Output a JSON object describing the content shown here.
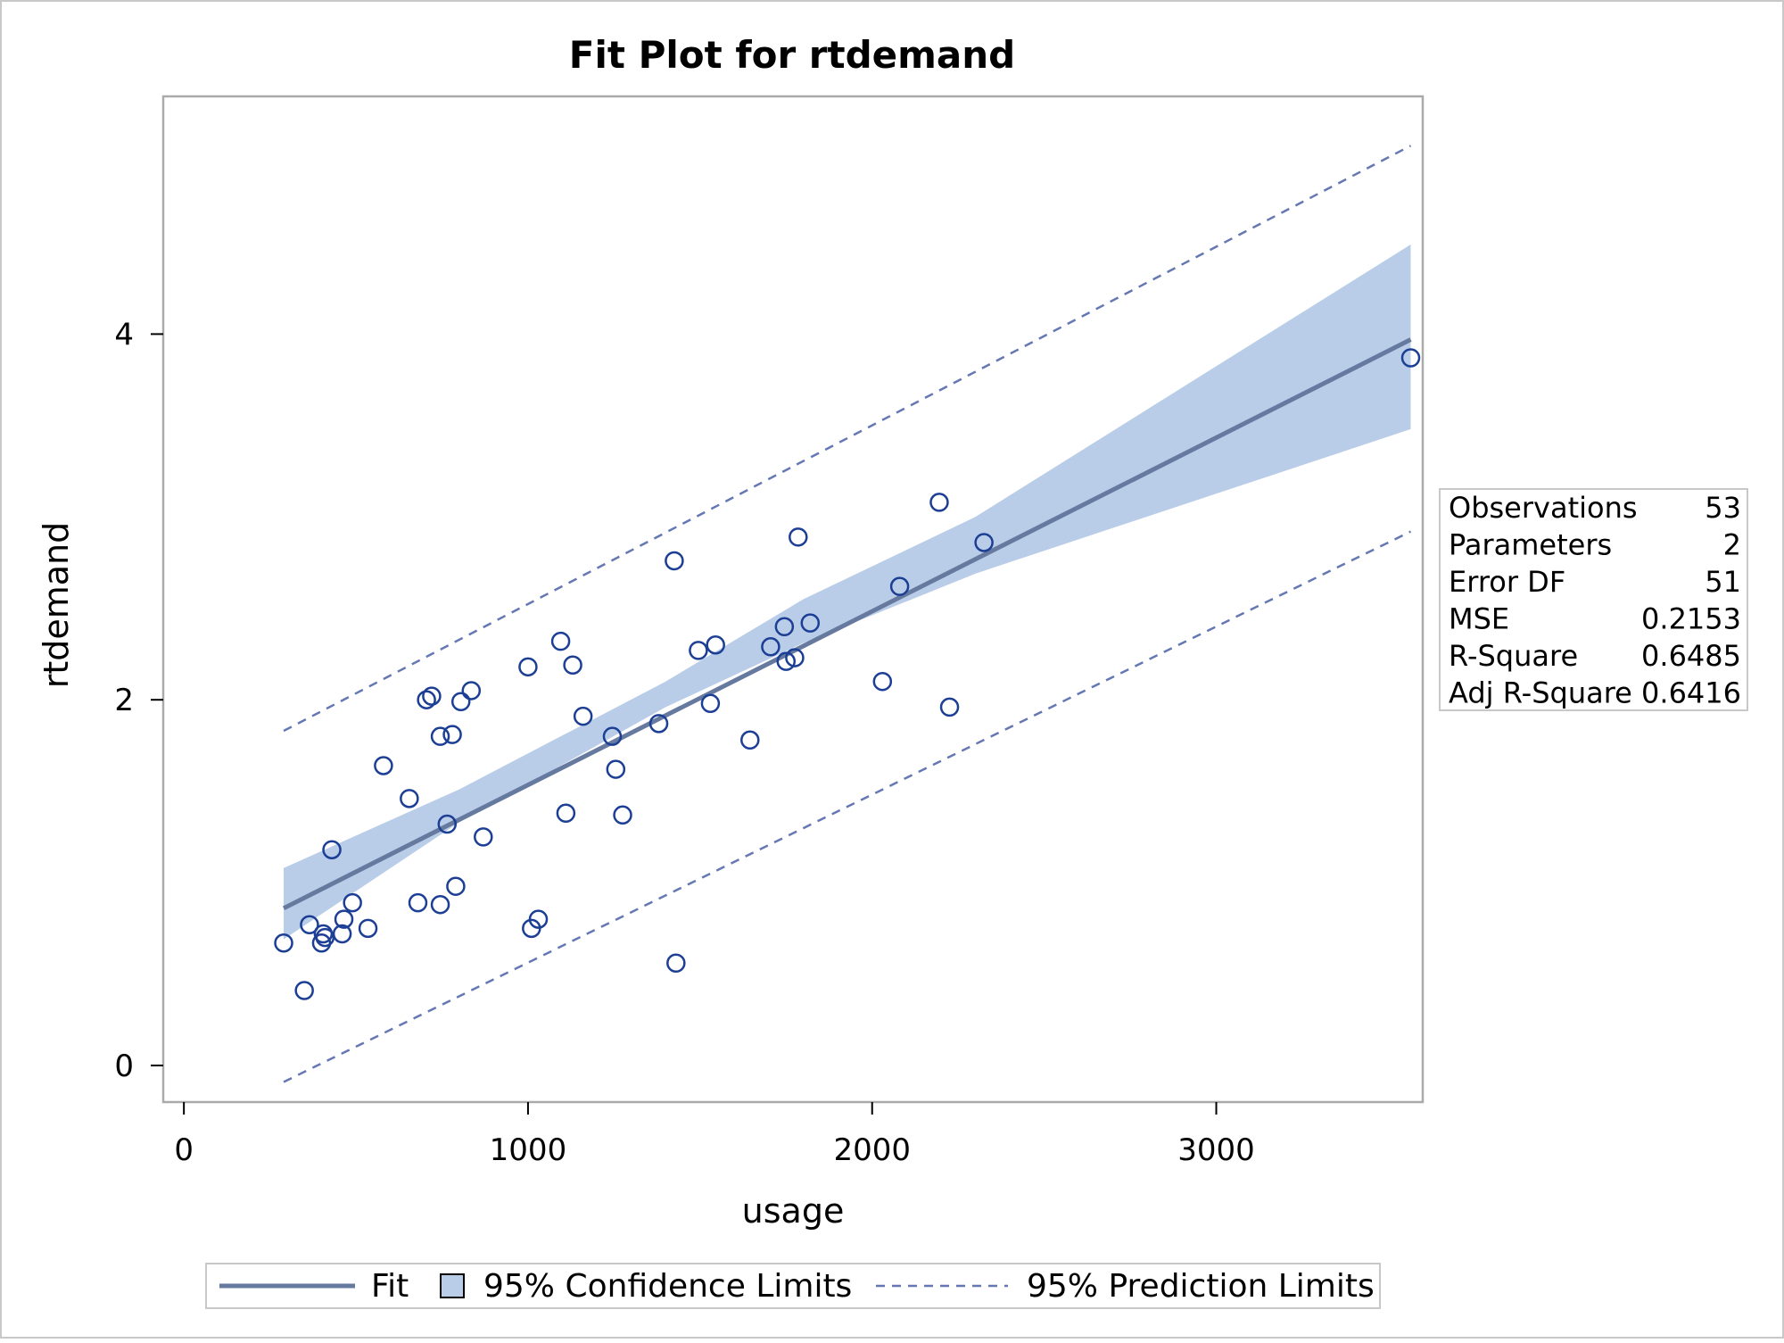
{
  "chart_data": {
    "type": "scatter",
    "title": "Fit Plot for rtdemand",
    "xlabel": "usage",
    "ylabel": "rtdemand",
    "xlim": [
      -60,
      3600
    ],
    "ylim": [
      -0.2,
      5.3
    ],
    "xticks": [
      0,
      1000,
      2000,
      3000
    ],
    "yticks": [
      0,
      2,
      4
    ],
    "grid": false,
    "colors": {
      "fit": "#66799f",
      "confidence_band": "#b9cde8",
      "prediction": "#6678b3",
      "points": "#1c3f95",
      "frame": "#aaaaaa"
    },
    "points": [
      [
        290,
        0.67
      ],
      [
        350,
        0.41
      ],
      [
        365,
        0.77
      ],
      [
        400,
        0.67
      ],
      [
        405,
        0.72
      ],
      [
        410,
        0.7
      ],
      [
        430,
        1.18
      ],
      [
        460,
        0.72
      ],
      [
        465,
        0.8
      ],
      [
        490,
        0.89
      ],
      [
        535,
        0.75
      ],
      [
        580,
        1.64
      ],
      [
        655,
        1.46
      ],
      [
        680,
        0.89
      ],
      [
        705,
        2.0
      ],
      [
        720,
        2.02
      ],
      [
        745,
        0.88
      ],
      [
        745,
        1.8
      ],
      [
        765,
        1.32
      ],
      [
        780,
        1.81
      ],
      [
        790,
        0.98
      ],
      [
        805,
        1.99
      ],
      [
        835,
        2.05
      ],
      [
        870,
        1.25
      ],
      [
        1000,
        2.18
      ],
      [
        1010,
        0.75
      ],
      [
        1030,
        0.8
      ],
      [
        1095,
        2.32
      ],
      [
        1110,
        1.38
      ],
      [
        1130,
        2.19
      ],
      [
        1160,
        1.91
      ],
      [
        1245,
        1.8
      ],
      [
        1255,
        1.62
      ],
      [
        1275,
        1.37
      ],
      [
        1380,
        1.87
      ],
      [
        1425,
        2.76
      ],
      [
        1430,
        0.56
      ],
      [
        1495,
        2.27
      ],
      [
        1530,
        1.98
      ],
      [
        1545,
        2.3
      ],
      [
        1645,
        1.78
      ],
      [
        1705,
        2.29
      ],
      [
        1745,
        2.4
      ],
      [
        1750,
        2.21
      ],
      [
        1775,
        2.23
      ],
      [
        1785,
        2.89
      ],
      [
        1820,
        2.42
      ],
      [
        2030,
        2.1
      ],
      [
        2080,
        2.62
      ],
      [
        2195,
        3.08
      ],
      [
        2225,
        1.96
      ],
      [
        2325,
        2.86
      ],
      [
        3565,
        3.87
      ]
    ],
    "fit": {
      "name": "Fit",
      "x": [
        290,
        3565
      ],
      "y": [
        0.86,
        3.97
      ]
    },
    "confidence_limits": {
      "name": "95% Confidence Limits",
      "x": [
        290,
        800,
        1400,
        1800,
        2300,
        3565
      ],
      "lower": [
        0.69,
        1.33,
        1.96,
        2.31,
        2.69,
        3.48
      ],
      "upper": [
        1.08,
        1.51,
        2.1,
        2.55,
        3.0,
        4.49
      ]
    },
    "prediction_limits": {
      "name": "95% Prediction Limits",
      "x": [
        290,
        3565
      ],
      "lower": [
        -0.09,
        2.92
      ],
      "upper": [
        1.83,
        5.03
      ]
    },
    "fit_statistics": [
      {
        "label": "Observations",
        "value": "53"
      },
      {
        "label": "Parameters",
        "value": "2"
      },
      {
        "label": "Error DF",
        "value": "51"
      },
      {
        "label": "MSE",
        "value": "0.2153"
      },
      {
        "label": "R-Square",
        "value": "0.6485"
      },
      {
        "label": "Adj R-Square",
        "value": "0.6416"
      }
    ],
    "legend": {
      "placement": "bottom",
      "entries": [
        "Fit",
        "95% Confidence Limits",
        "95% Prediction Limits"
      ]
    }
  }
}
